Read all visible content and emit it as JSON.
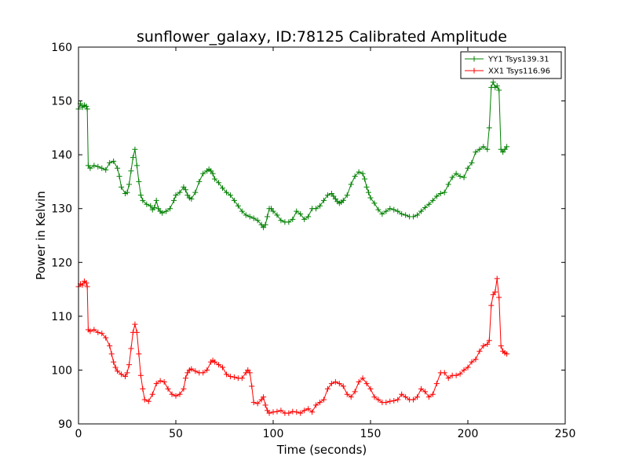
{
  "chart_data": {
    "type": "line",
    "title": "sunflower_galaxy, ID:78125 Calibrated Amplitude",
    "xlabel": "Time (seconds)",
    "ylabel": "Power in Kelvin",
    "xlim": [
      0,
      250
    ],
    "ylim": [
      90,
      160
    ],
    "xticks": [
      "0",
      "50",
      "100",
      "150",
      "200",
      "250"
    ],
    "yticks": [
      "90",
      "100",
      "110",
      "120",
      "130",
      "140",
      "150",
      "160"
    ],
    "grid": false,
    "legend_position": "top-right",
    "marker": "+",
    "series": [
      {
        "name": "YY1 Tsys139.31",
        "color": "#008000",
        "x": [
          0,
          1,
          2,
          3,
          4,
          4.5,
          5,
          6,
          8,
          10,
          12,
          14,
          16,
          18,
          20,
          21,
          22,
          24,
          25,
          26,
          27,
          28,
          29,
          30,
          31,
          32,
          33,
          35,
          37,
          38,
          39,
          40,
          41,
          42,
          43,
          45,
          47,
          49,
          50,
          52,
          54,
          55,
          56,
          57,
          58,
          60,
          62,
          64,
          66,
          67,
          68,
          69,
          70,
          72,
          74,
          76,
          78,
          80,
          82,
          84,
          86,
          88,
          90,
          92,
          94,
          95,
          96,
          97,
          98,
          99,
          100,
          102,
          104,
          106,
          108,
          110,
          112,
          114,
          116,
          118,
          120,
          122,
          124,
          126,
          128,
          130,
          131,
          132,
          133,
          134,
          135,
          136,
          138,
          140,
          142,
          144,
          146,
          147,
          148,
          149,
          150,
          152,
          154,
          156,
          158,
          160,
          162,
          164,
          166,
          168,
          170,
          172,
          174,
          176,
          178,
          180,
          182,
          184,
          186,
          188,
          190,
          192,
          194,
          196,
          198,
          200,
          202,
          204,
          206,
          208,
          210,
          211,
          212,
          213,
          214,
          215,
          216,
          217,
          218,
          219,
          220
        ],
        "values": [
          148.5,
          149.5,
          148.8,
          149.2,
          149,
          148.5,
          138,
          137.5,
          138,
          137.8,
          137.5,
          137.2,
          138.5,
          138.8,
          137.5,
          136,
          134,
          132.8,
          133,
          134.5,
          137,
          139.5,
          141,
          138,
          135,
          132.5,
          131.5,
          130.8,
          130.5,
          129.8,
          130.2,
          131.5,
          130,
          129.5,
          129.2,
          129.5,
          130,
          131.5,
          132.5,
          133,
          134,
          133.5,
          132.5,
          132,
          131.8,
          133,
          135,
          136.5,
          137,
          137.3,
          137,
          136.5,
          135.5,
          134.8,
          133.8,
          133,
          132.5,
          131.5,
          130.5,
          129.5,
          128.8,
          128.5,
          128.2,
          127.8,
          127,
          126.5,
          127,
          128.5,
          130,
          130,
          129.5,
          128.8,
          127.8,
          127.5,
          127.5,
          128,
          129.5,
          129,
          128,
          128.5,
          130,
          130,
          130.5,
          131.5,
          132.5,
          132.8,
          132.3,
          131.8,
          131.3,
          131,
          131.2,
          131.5,
          132.5,
          134.5,
          136,
          136.8,
          136.5,
          135.5,
          134,
          133,
          132,
          131,
          129.8,
          129,
          129.5,
          130,
          129.8,
          129.5,
          129,
          128.8,
          128.5,
          128.5,
          128.8,
          129.5,
          130.2,
          130.8,
          131.5,
          132.3,
          132.8,
          133,
          134.5,
          135.8,
          136.5,
          136,
          135.8,
          137.5,
          138.5,
          140.5,
          141,
          141.5,
          141,
          145,
          152.5,
          153.5,
          152.5,
          152.8,
          152,
          141,
          140.5,
          141,
          141.5
        ]
      },
      {
        "name": "XX1 Tsys116.96",
        "color": "#ff0000",
        "x": [
          0,
          1,
          2,
          3,
          4,
          4.5,
          5,
          6,
          8,
          10,
          12,
          14,
          16,
          17,
          18,
          19,
          20,
          22,
          24,
          25,
          26,
          27,
          28,
          29,
          30,
          31,
          32,
          33,
          34,
          36,
          38,
          40,
          42,
          44,
          46,
          48,
          50,
          52,
          54,
          55,
          56,
          57,
          58,
          60,
          62,
          64,
          66,
          68,
          69,
          70,
          72,
          74,
          76,
          78,
          80,
          82,
          84,
          86,
          87,
          88,
          89,
          90,
          92,
          94,
          95,
          96,
          97,
          98,
          100,
          102,
          104,
          106,
          108,
          110,
          112,
          114,
          116,
          118,
          120,
          122,
          124,
          126,
          128,
          130,
          132,
          134,
          136,
          138,
          140,
          142,
          144,
          146,
          148,
          150,
          152,
          154,
          156,
          158,
          160,
          162,
          164,
          166,
          168,
          170,
          172,
          174,
          176,
          178,
          180,
          182,
          184,
          186,
          188,
          190,
          192,
          194,
          196,
          198,
          200,
          202,
          204,
          206,
          208,
          210,
          211,
          212,
          213,
          214,
          215,
          216,
          217,
          218,
          219,
          220
        ],
        "values": [
          115.5,
          116,
          115.8,
          116.5,
          116.2,
          115.5,
          107.5,
          107.2,
          107.5,
          107,
          106.8,
          106,
          104.5,
          103,
          101.5,
          100.5,
          99.8,
          99.2,
          98.8,
          99.5,
          101,
          104,
          107,
          108.5,
          107,
          103,
          99,
          96.5,
          94.5,
          94.2,
          95.5,
          97.5,
          98,
          97.8,
          96.5,
          95.5,
          95.2,
          95.5,
          96.5,
          98.5,
          99.5,
          100,
          100.2,
          99.8,
          99.5,
          99.5,
          100,
          101.5,
          101.8,
          101.5,
          101,
          100.5,
          99.2,
          98.8,
          98.7,
          98.5,
          98.5,
          99.5,
          100,
          99.5,
          97,
          94,
          93.8,
          94.5,
          95,
          93.5,
          92.5,
          92,
          92.2,
          92.3,
          92.5,
          92,
          92,
          92.3,
          92.2,
          92,
          92.5,
          92.8,
          92.2,
          93.5,
          94,
          94.5,
          96.5,
          97.5,
          97.8,
          97.5,
          97,
          95.5,
          95,
          96,
          97.8,
          98.5,
          97.5,
          96.5,
          95,
          94.5,
          94,
          94,
          94.2,
          94.3,
          94.5,
          95.5,
          95,
          94.5,
          94.5,
          95,
          96.5,
          96,
          95,
          95.5,
          97.5,
          99.5,
          99.5,
          98.5,
          99,
          99,
          99.3,
          100,
          100.5,
          101.5,
          102,
          103.5,
          104.5,
          104.8,
          105.5,
          112,
          114,
          114.5,
          117,
          113.5,
          104.5,
          103.5,
          103.2,
          103
        ]
      }
    ]
  }
}
